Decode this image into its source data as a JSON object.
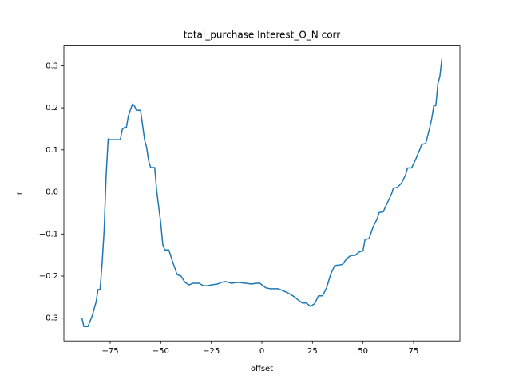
{
  "chart_data": {
    "type": "line",
    "title": "total_purchase Interest_O_N corr",
    "x_label": "offset",
    "y_label": "r",
    "x": [
      -89,
      -88,
      -86,
      -84,
      -82,
      -81,
      -80,
      -79,
      -78,
      -77,
      -76,
      -75,
      -70,
      -69,
      -68,
      -67,
      -66,
      -64,
      -63,
      -62,
      -60,
      -58,
      -57,
      -56,
      -55,
      -53,
      -52,
      -50,
      -49,
      -48,
      -46,
      -44,
      -43,
      -42,
      -40,
      -38,
      -36,
      -34,
      -31,
      -29,
      -27,
      -25,
      -22,
      -20,
      -18,
      -15,
      -12,
      -8,
      -5,
      -3,
      -1,
      2,
      4,
      8,
      10,
      12,
      14,
      16,
      18,
      20,
      22,
      24,
      26,
      28,
      30,
      32,
      34,
      36,
      38,
      40,
      42,
      44,
      46,
      48,
      50,
      51,
      53,
      55,
      57,
      58,
      60,
      62,
      64,
      65,
      67,
      69,
      71,
      72,
      74,
      76,
      78,
      79,
      81,
      83,
      84,
      85,
      86,
      87,
      88,
      89
    ],
    "series": [
      {
        "name": "r",
        "color": "#1f77b4",
        "values": [
          -0.3,
          -0.32,
          -0.32,
          -0.296,
          -0.262,
          -0.232,
          -0.232,
          -0.17,
          -0.092,
          0.04,
          0.126,
          0.124,
          0.124,
          0.149,
          0.153,
          0.153,
          0.181,
          0.209,
          0.204,
          0.194,
          0.194,
          0.124,
          0.106,
          0.074,
          0.058,
          0.058,
          0.002,
          -0.074,
          -0.125,
          -0.138,
          -0.138,
          -0.168,
          -0.181,
          -0.196,
          -0.2,
          -0.215,
          -0.221,
          -0.217,
          -0.217,
          -0.223,
          -0.223,
          -0.221,
          -0.219,
          -0.215,
          -0.213,
          -0.217,
          -0.215,
          -0.217,
          -0.219,
          -0.217,
          -0.217,
          -0.228,
          -0.23,
          -0.23,
          -0.234,
          -0.238,
          -0.243,
          -0.249,
          -0.257,
          -0.264,
          -0.264,
          -0.272,
          -0.266,
          -0.247,
          -0.247,
          -0.228,
          -0.196,
          -0.175,
          -0.174,
          -0.172,
          -0.158,
          -0.151,
          -0.151,
          -0.143,
          -0.14,
          -0.113,
          -0.111,
          -0.083,
          -0.064,
          -0.049,
          -0.047,
          -0.026,
          -0.006,
          0.009,
          0.011,
          0.021,
          0.04,
          0.057,
          0.057,
          0.077,
          0.1,
          0.113,
          0.115,
          0.153,
          0.175,
          0.205,
          0.205,
          0.257,
          0.275,
          0.317
        ]
      }
    ],
    "xlim": [
      -97.9,
      97.9
    ],
    "ylim": [
      -0.354,
      0.347
    ],
    "xticks": [
      {
        "value": -75,
        "label": "−75"
      },
      {
        "value": -50,
        "label": "−50"
      },
      {
        "value": -25,
        "label": "−25"
      },
      0,
      25,
      50,
      75
    ],
    "yticks": [
      {
        "value": -0.3,
        "label": "−0.3"
      },
      {
        "value": -0.2,
        "label": "−0.2"
      },
      {
        "value": -0.1,
        "label": "−0.1"
      },
      {
        "value": 0,
        "label": "0.0"
      },
      0.1,
      0.2,
      0.3
    ]
  }
}
